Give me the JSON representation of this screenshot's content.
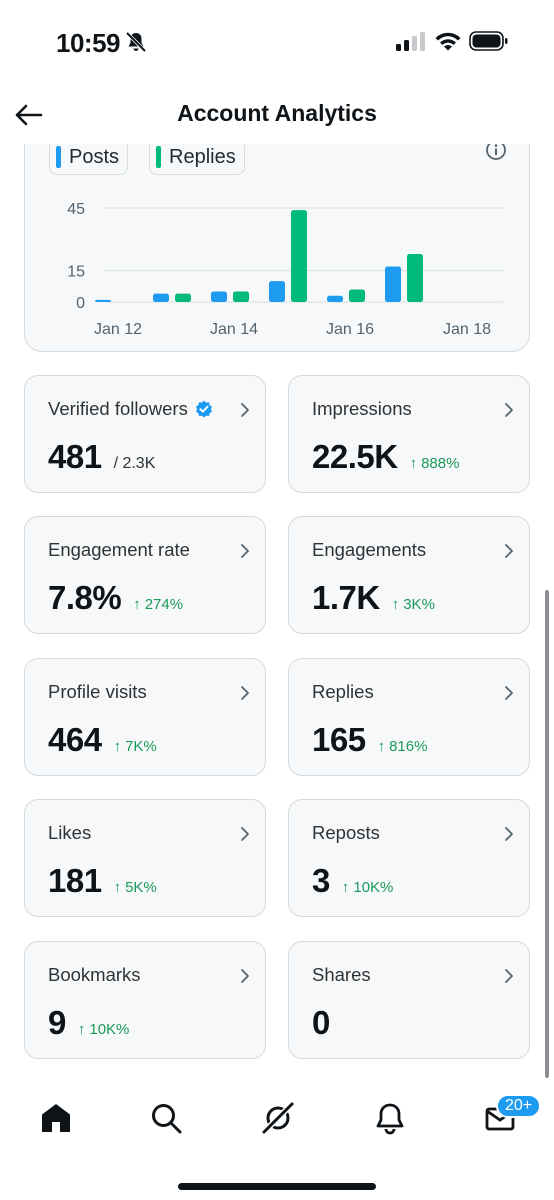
{
  "status_bar": {
    "time": "10:59"
  },
  "header": {
    "title": "Account Analytics"
  },
  "chart": {
    "legend": [
      {
        "label": "Posts",
        "color": "#1d9bf0"
      },
      {
        "label": "Replies",
        "color": "#00ba7c"
      }
    ],
    "y_ticks": [
      "45",
      "15",
      "0"
    ],
    "x_ticks": [
      "Jan 12",
      "Jan 14",
      "Jan 16",
      "Jan 18"
    ]
  },
  "chart_data": {
    "type": "bar",
    "categories": [
      "Jan 12",
      "Jan 13",
      "Jan 14",
      "Jan 15",
      "Jan 16",
      "Jan 17"
    ],
    "series": [
      {
        "name": "Posts",
        "values": [
          1,
          4,
          5,
          10,
          3,
          17
        ]
      },
      {
        "name": "Replies",
        "values": [
          0,
          4,
          5,
          44,
          6,
          23
        ]
      }
    ],
    "y_ticks": [
      0,
      15,
      45
    ],
    "ylim": [
      0,
      48
    ],
    "grid": true,
    "legend_position": "top-left"
  },
  "stats": [
    {
      "name": "verified-followers",
      "label": "Verified followers",
      "value": "481",
      "total": "/ 2.3K",
      "change": "",
      "verified": true
    },
    {
      "name": "impressions",
      "label": "Impressions",
      "value": "22.5K",
      "total": "",
      "change": "888%"
    },
    {
      "name": "engagement-rate",
      "label": "Engagement rate",
      "value": "7.8%",
      "total": "",
      "change": "274%"
    },
    {
      "name": "engagements",
      "label": "Engagements",
      "value": "1.7K",
      "total": "",
      "change": "3K%"
    },
    {
      "name": "profile-visits",
      "label": "Profile visits",
      "value": "464",
      "total": "",
      "change": "7K%"
    },
    {
      "name": "replies",
      "label": "Replies",
      "value": "165",
      "total": "",
      "change": "816%"
    },
    {
      "name": "likes",
      "label": "Likes",
      "value": "181",
      "total": "",
      "change": "5K%"
    },
    {
      "name": "reposts",
      "label": "Reposts",
      "value": "3",
      "total": "",
      "change": "10K%"
    },
    {
      "name": "bookmarks",
      "label": "Bookmarks",
      "value": "9",
      "total": "",
      "change": "10K%"
    },
    {
      "name": "shares",
      "label": "Shares",
      "value": "0",
      "total": "",
      "change": ""
    }
  ],
  "bottom_nav": {
    "items": [
      {
        "name": "home",
        "icon": "home-icon"
      },
      {
        "name": "search",
        "icon": "search-icon"
      },
      {
        "name": "grok",
        "icon": "grok-icon"
      },
      {
        "name": "notifications",
        "icon": "bell-icon"
      },
      {
        "name": "messages",
        "icon": "mail-icon"
      }
    ],
    "messages_badge": "20+"
  },
  "colors": {
    "accent": "#1d9bf0",
    "positive": "#1d9a5b",
    "replies": "#00ba7c"
  }
}
